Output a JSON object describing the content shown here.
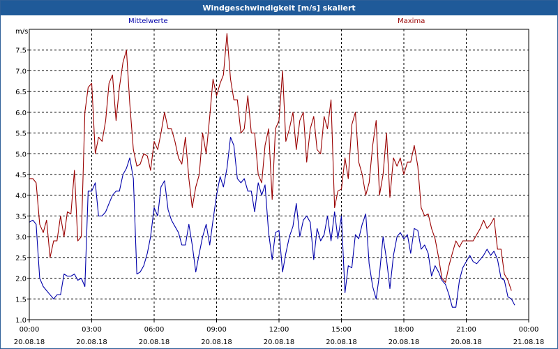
{
  "title": "Windgeschwindigkeit [m/s] skaliert",
  "colors": {
    "mean": "#0000aa",
    "max": "#990000",
    "title_bg": "#1f5a99"
  },
  "chart_data": {
    "type": "line",
    "ylabel": "m/s",
    "ylim": [
      1.0,
      8.0
    ],
    "xlim_hours": [
      0,
      24
    ],
    "grid": true,
    "legend_placement": "top",
    "y_ticks": [
      "1.0",
      "1.5",
      "2.0",
      "2.5",
      "3.0",
      "3.5",
      "4.0",
      "4.5",
      "5.0",
      "5.5",
      "6.0",
      "6.5",
      "7.0",
      "7.5"
    ],
    "x_ticks": [
      {
        "time": "00:00",
        "date": "20.08.18"
      },
      {
        "time": "03:00",
        "date": "20.08.18"
      },
      {
        "time": "06:00",
        "date": "20.08.18"
      },
      {
        "time": "09:00",
        "date": "20.08.18"
      },
      {
        "time": "12:00",
        "date": "20.08.18"
      },
      {
        "time": "15:00",
        "date": "20.08.18"
      },
      {
        "time": "18:00",
        "date": "20.08.18"
      },
      {
        "time": "21:00",
        "date": "20.08.18"
      },
      {
        "time": "00:00",
        "date": "21.08.18"
      }
    ],
    "series": [
      {
        "name": "Mittelwerte",
        "points": [
          [
            0.0,
            3.35
          ],
          [
            0.17,
            3.4
          ],
          [
            0.33,
            3.3
          ],
          [
            0.5,
            2.0
          ],
          [
            0.67,
            1.8
          ],
          [
            0.83,
            1.7
          ],
          [
            1.0,
            1.6
          ],
          [
            1.17,
            1.5
          ],
          [
            1.33,
            1.6
          ],
          [
            1.5,
            1.6
          ],
          [
            1.67,
            2.1
          ],
          [
            1.83,
            2.05
          ],
          [
            2.0,
            2.05
          ],
          [
            2.17,
            2.1
          ],
          [
            2.33,
            1.95
          ],
          [
            2.5,
            2.0
          ],
          [
            2.67,
            1.8
          ],
          [
            2.83,
            4.1
          ],
          [
            3.0,
            4.1
          ],
          [
            3.17,
            4.3
          ],
          [
            3.33,
            3.5
          ],
          [
            3.5,
            3.5
          ],
          [
            3.67,
            3.6
          ],
          [
            3.83,
            3.8
          ],
          [
            4.0,
            4.0
          ],
          [
            4.17,
            4.1
          ],
          [
            4.33,
            4.1
          ],
          [
            4.5,
            4.5
          ],
          [
            4.67,
            4.65
          ],
          [
            4.83,
            4.9
          ],
          [
            5.0,
            4.4
          ],
          [
            5.17,
            2.1
          ],
          [
            5.33,
            2.15
          ],
          [
            5.5,
            2.3
          ],
          [
            5.67,
            2.6
          ],
          [
            5.83,
            3.0
          ],
          [
            6.0,
            3.7
          ],
          [
            6.17,
            3.5
          ],
          [
            6.33,
            4.2
          ],
          [
            6.5,
            4.35
          ],
          [
            6.67,
            3.65
          ],
          [
            6.83,
            3.4
          ],
          [
            7.0,
            3.25
          ],
          [
            7.17,
            3.1
          ],
          [
            7.33,
            2.8
          ],
          [
            7.5,
            2.8
          ],
          [
            7.67,
            3.3
          ],
          [
            7.83,
            2.8
          ],
          [
            8.0,
            2.15
          ],
          [
            8.17,
            2.6
          ],
          [
            8.33,
            3.0
          ],
          [
            8.5,
            3.3
          ],
          [
            8.67,
            2.8
          ],
          [
            8.83,
            3.4
          ],
          [
            9.0,
            4.0
          ],
          [
            9.17,
            4.45
          ],
          [
            9.33,
            4.2
          ],
          [
            9.5,
            4.65
          ],
          [
            9.67,
            5.4
          ],
          [
            9.83,
            5.2
          ],
          [
            10.0,
            4.4
          ],
          [
            10.17,
            4.3
          ],
          [
            10.33,
            4.4
          ],
          [
            10.5,
            4.1
          ],
          [
            10.67,
            4.1
          ],
          [
            10.83,
            3.6
          ],
          [
            11.0,
            4.3
          ],
          [
            11.17,
            4.0
          ],
          [
            11.33,
            4.25
          ],
          [
            11.5,
            3.1
          ],
          [
            11.67,
            2.45
          ],
          [
            11.83,
            3.1
          ],
          [
            12.0,
            3.15
          ],
          [
            12.17,
            2.15
          ],
          [
            12.33,
            2.6
          ],
          [
            12.5,
            3.0
          ],
          [
            12.67,
            3.25
          ],
          [
            12.83,
            3.8
          ],
          [
            13.0,
            3.0
          ],
          [
            13.17,
            3.4
          ],
          [
            13.33,
            3.5
          ],
          [
            13.5,
            3.35
          ],
          [
            13.67,
            2.45
          ],
          [
            13.83,
            3.2
          ],
          [
            14.0,
            2.9
          ],
          [
            14.17,
            3.05
          ],
          [
            14.33,
            3.5
          ],
          [
            14.5,
            2.9
          ],
          [
            14.67,
            3.6
          ],
          [
            14.83,
            2.95
          ],
          [
            15.0,
            3.5
          ],
          [
            15.17,
            1.65
          ],
          [
            15.33,
            2.3
          ],
          [
            15.5,
            2.25
          ],
          [
            15.67,
            3.05
          ],
          [
            15.83,
            2.95
          ],
          [
            16.0,
            3.3
          ],
          [
            16.17,
            3.55
          ],
          [
            16.33,
            2.35
          ],
          [
            16.5,
            1.8
          ],
          [
            16.67,
            1.5
          ],
          [
            16.83,
            2.1
          ],
          [
            17.0,
            3.0
          ],
          [
            17.17,
            2.45
          ],
          [
            17.33,
            1.75
          ],
          [
            17.5,
            2.55
          ],
          [
            17.67,
            3.0
          ],
          [
            17.83,
            3.1
          ],
          [
            18.0,
            2.95
          ],
          [
            18.17,
            3.05
          ],
          [
            18.33,
            2.6
          ],
          [
            18.5,
            3.2
          ],
          [
            18.67,
            3.15
          ],
          [
            18.83,
            2.7
          ],
          [
            19.0,
            2.8
          ],
          [
            19.17,
            2.6
          ],
          [
            19.33,
            2.05
          ],
          [
            19.5,
            2.3
          ],
          [
            19.67,
            2.15
          ],
          [
            19.83,
            1.95
          ],
          [
            20.0,
            1.85
          ],
          [
            20.17,
            1.6
          ],
          [
            20.33,
            1.3
          ],
          [
            20.5,
            1.3
          ],
          [
            20.67,
            1.95
          ],
          [
            20.83,
            2.25
          ],
          [
            21.0,
            2.4
          ],
          [
            21.17,
            2.55
          ],
          [
            21.33,
            2.4
          ],
          [
            21.5,
            2.35
          ],
          [
            21.67,
            2.45
          ],
          [
            21.83,
            2.55
          ],
          [
            22.0,
            2.7
          ],
          [
            22.17,
            2.55
          ],
          [
            22.33,
            2.65
          ],
          [
            22.5,
            2.45
          ],
          [
            22.67,
            2.0
          ],
          [
            22.83,
            1.95
          ],
          [
            23.0,
            1.55
          ],
          [
            23.17,
            1.5
          ],
          [
            23.33,
            1.35
          ]
        ]
      },
      {
        "name": "Maxima",
        "points": [
          [
            0.0,
            4.4
          ],
          [
            0.17,
            4.4
          ],
          [
            0.33,
            4.3
          ],
          [
            0.5,
            3.3
          ],
          [
            0.67,
            3.1
          ],
          [
            0.83,
            3.4
          ],
          [
            1.0,
            2.5
          ],
          [
            1.17,
            2.9
          ],
          [
            1.33,
            2.9
          ],
          [
            1.5,
            3.5
          ],
          [
            1.67,
            3.0
          ],
          [
            1.83,
            3.6
          ],
          [
            2.0,
            3.55
          ],
          [
            2.17,
            4.6
          ],
          [
            2.33,
            2.9
          ],
          [
            2.5,
            3.0
          ],
          [
            2.67,
            6.0
          ],
          [
            2.83,
            6.6
          ],
          [
            3.0,
            6.7
          ],
          [
            3.17,
            5.0
          ],
          [
            3.33,
            5.4
          ],
          [
            3.5,
            5.3
          ],
          [
            3.67,
            5.8
          ],
          [
            3.83,
            6.7
          ],
          [
            4.0,
            6.9
          ],
          [
            4.17,
            5.8
          ],
          [
            4.33,
            6.6
          ],
          [
            4.5,
            7.2
          ],
          [
            4.67,
            7.5
          ],
          [
            4.83,
            6.2
          ],
          [
            5.0,
            5.1
          ],
          [
            5.17,
            4.7
          ],
          [
            5.33,
            4.75
          ],
          [
            5.5,
            5.0
          ],
          [
            5.67,
            4.95
          ],
          [
            5.83,
            4.6
          ],
          [
            6.0,
            5.3
          ],
          [
            6.17,
            5.1
          ],
          [
            6.33,
            5.5
          ],
          [
            6.5,
            6.0
          ],
          [
            6.67,
            5.6
          ],
          [
            6.83,
            5.6
          ],
          [
            7.0,
            5.3
          ],
          [
            7.17,
            4.9
          ],
          [
            7.33,
            4.75
          ],
          [
            7.5,
            5.4
          ],
          [
            7.67,
            4.4
          ],
          [
            7.83,
            3.7
          ],
          [
            8.0,
            4.2
          ],
          [
            8.17,
            4.5
          ],
          [
            8.33,
            5.5
          ],
          [
            8.5,
            5.0
          ],
          [
            8.67,
            5.9
          ],
          [
            8.83,
            6.8
          ],
          [
            9.0,
            6.4
          ],
          [
            9.17,
            6.7
          ],
          [
            9.33,
            6.9
          ],
          [
            9.5,
            7.9
          ],
          [
            9.67,
            6.8
          ],
          [
            9.83,
            6.3
          ],
          [
            10.0,
            6.3
          ],
          [
            10.17,
            5.5
          ],
          [
            10.33,
            5.6
          ],
          [
            10.5,
            6.4
          ],
          [
            10.67,
            5.5
          ],
          [
            10.83,
            5.5
          ],
          [
            11.0,
            4.5
          ],
          [
            11.17,
            4.3
          ],
          [
            11.33,
            5.2
          ],
          [
            11.5,
            5.6
          ],
          [
            11.67,
            3.9
          ],
          [
            11.83,
            5.6
          ],
          [
            12.0,
            5.8
          ],
          [
            12.17,
            7.0
          ],
          [
            12.33,
            5.3
          ],
          [
            12.5,
            5.6
          ],
          [
            12.67,
            6.0
          ],
          [
            12.83,
            5.1
          ],
          [
            13.0,
            5.8
          ],
          [
            13.17,
            6.0
          ],
          [
            13.33,
            4.8
          ],
          [
            13.5,
            5.6
          ],
          [
            13.67,
            5.9
          ],
          [
            13.83,
            5.1
          ],
          [
            14.0,
            5.0
          ],
          [
            14.17,
            5.9
          ],
          [
            14.33,
            5.6
          ],
          [
            14.5,
            6.3
          ],
          [
            14.67,
            3.7
          ],
          [
            14.83,
            4.1
          ],
          [
            15.0,
            4.15
          ],
          [
            15.17,
            4.9
          ],
          [
            15.33,
            4.4
          ],
          [
            15.5,
            5.7
          ],
          [
            15.67,
            6.0
          ],
          [
            15.83,
            4.8
          ],
          [
            16.0,
            4.5
          ],
          [
            16.17,
            4.0
          ],
          [
            16.33,
            4.3
          ],
          [
            16.5,
            5.2
          ],
          [
            16.67,
            5.8
          ],
          [
            16.83,
            4.0
          ],
          [
            17.0,
            4.5
          ],
          [
            17.17,
            5.5
          ],
          [
            17.33,
            3.95
          ],
          [
            17.5,
            4.9
          ],
          [
            17.67,
            4.7
          ],
          [
            17.83,
            4.9
          ],
          [
            18.0,
            4.5
          ],
          [
            18.17,
            4.8
          ],
          [
            18.33,
            4.8
          ],
          [
            18.5,
            5.2
          ],
          [
            18.67,
            4.7
          ],
          [
            18.83,
            3.7
          ],
          [
            19.0,
            3.5
          ],
          [
            19.17,
            3.55
          ],
          [
            19.33,
            3.2
          ],
          [
            19.5,
            2.95
          ],
          [
            19.67,
            2.5
          ],
          [
            19.83,
            2.0
          ],
          [
            20.0,
            1.9
          ],
          [
            20.17,
            2.3
          ],
          [
            20.33,
            2.6
          ],
          [
            20.5,
            2.9
          ],
          [
            20.67,
            2.75
          ],
          [
            20.83,
            2.9
          ],
          [
            21.0,
            2.9
          ],
          [
            21.17,
            2.9
          ],
          [
            21.33,
            2.9
          ],
          [
            21.5,
            3.05
          ],
          [
            21.67,
            3.2
          ],
          [
            21.83,
            3.4
          ],
          [
            22.0,
            3.2
          ],
          [
            22.17,
            3.3
          ],
          [
            22.33,
            3.45
          ],
          [
            22.5,
            2.7
          ],
          [
            22.67,
            2.7
          ],
          [
            22.83,
            2.1
          ],
          [
            23.0,
            1.95
          ],
          [
            23.17,
            1.7
          ]
        ]
      }
    ]
  }
}
